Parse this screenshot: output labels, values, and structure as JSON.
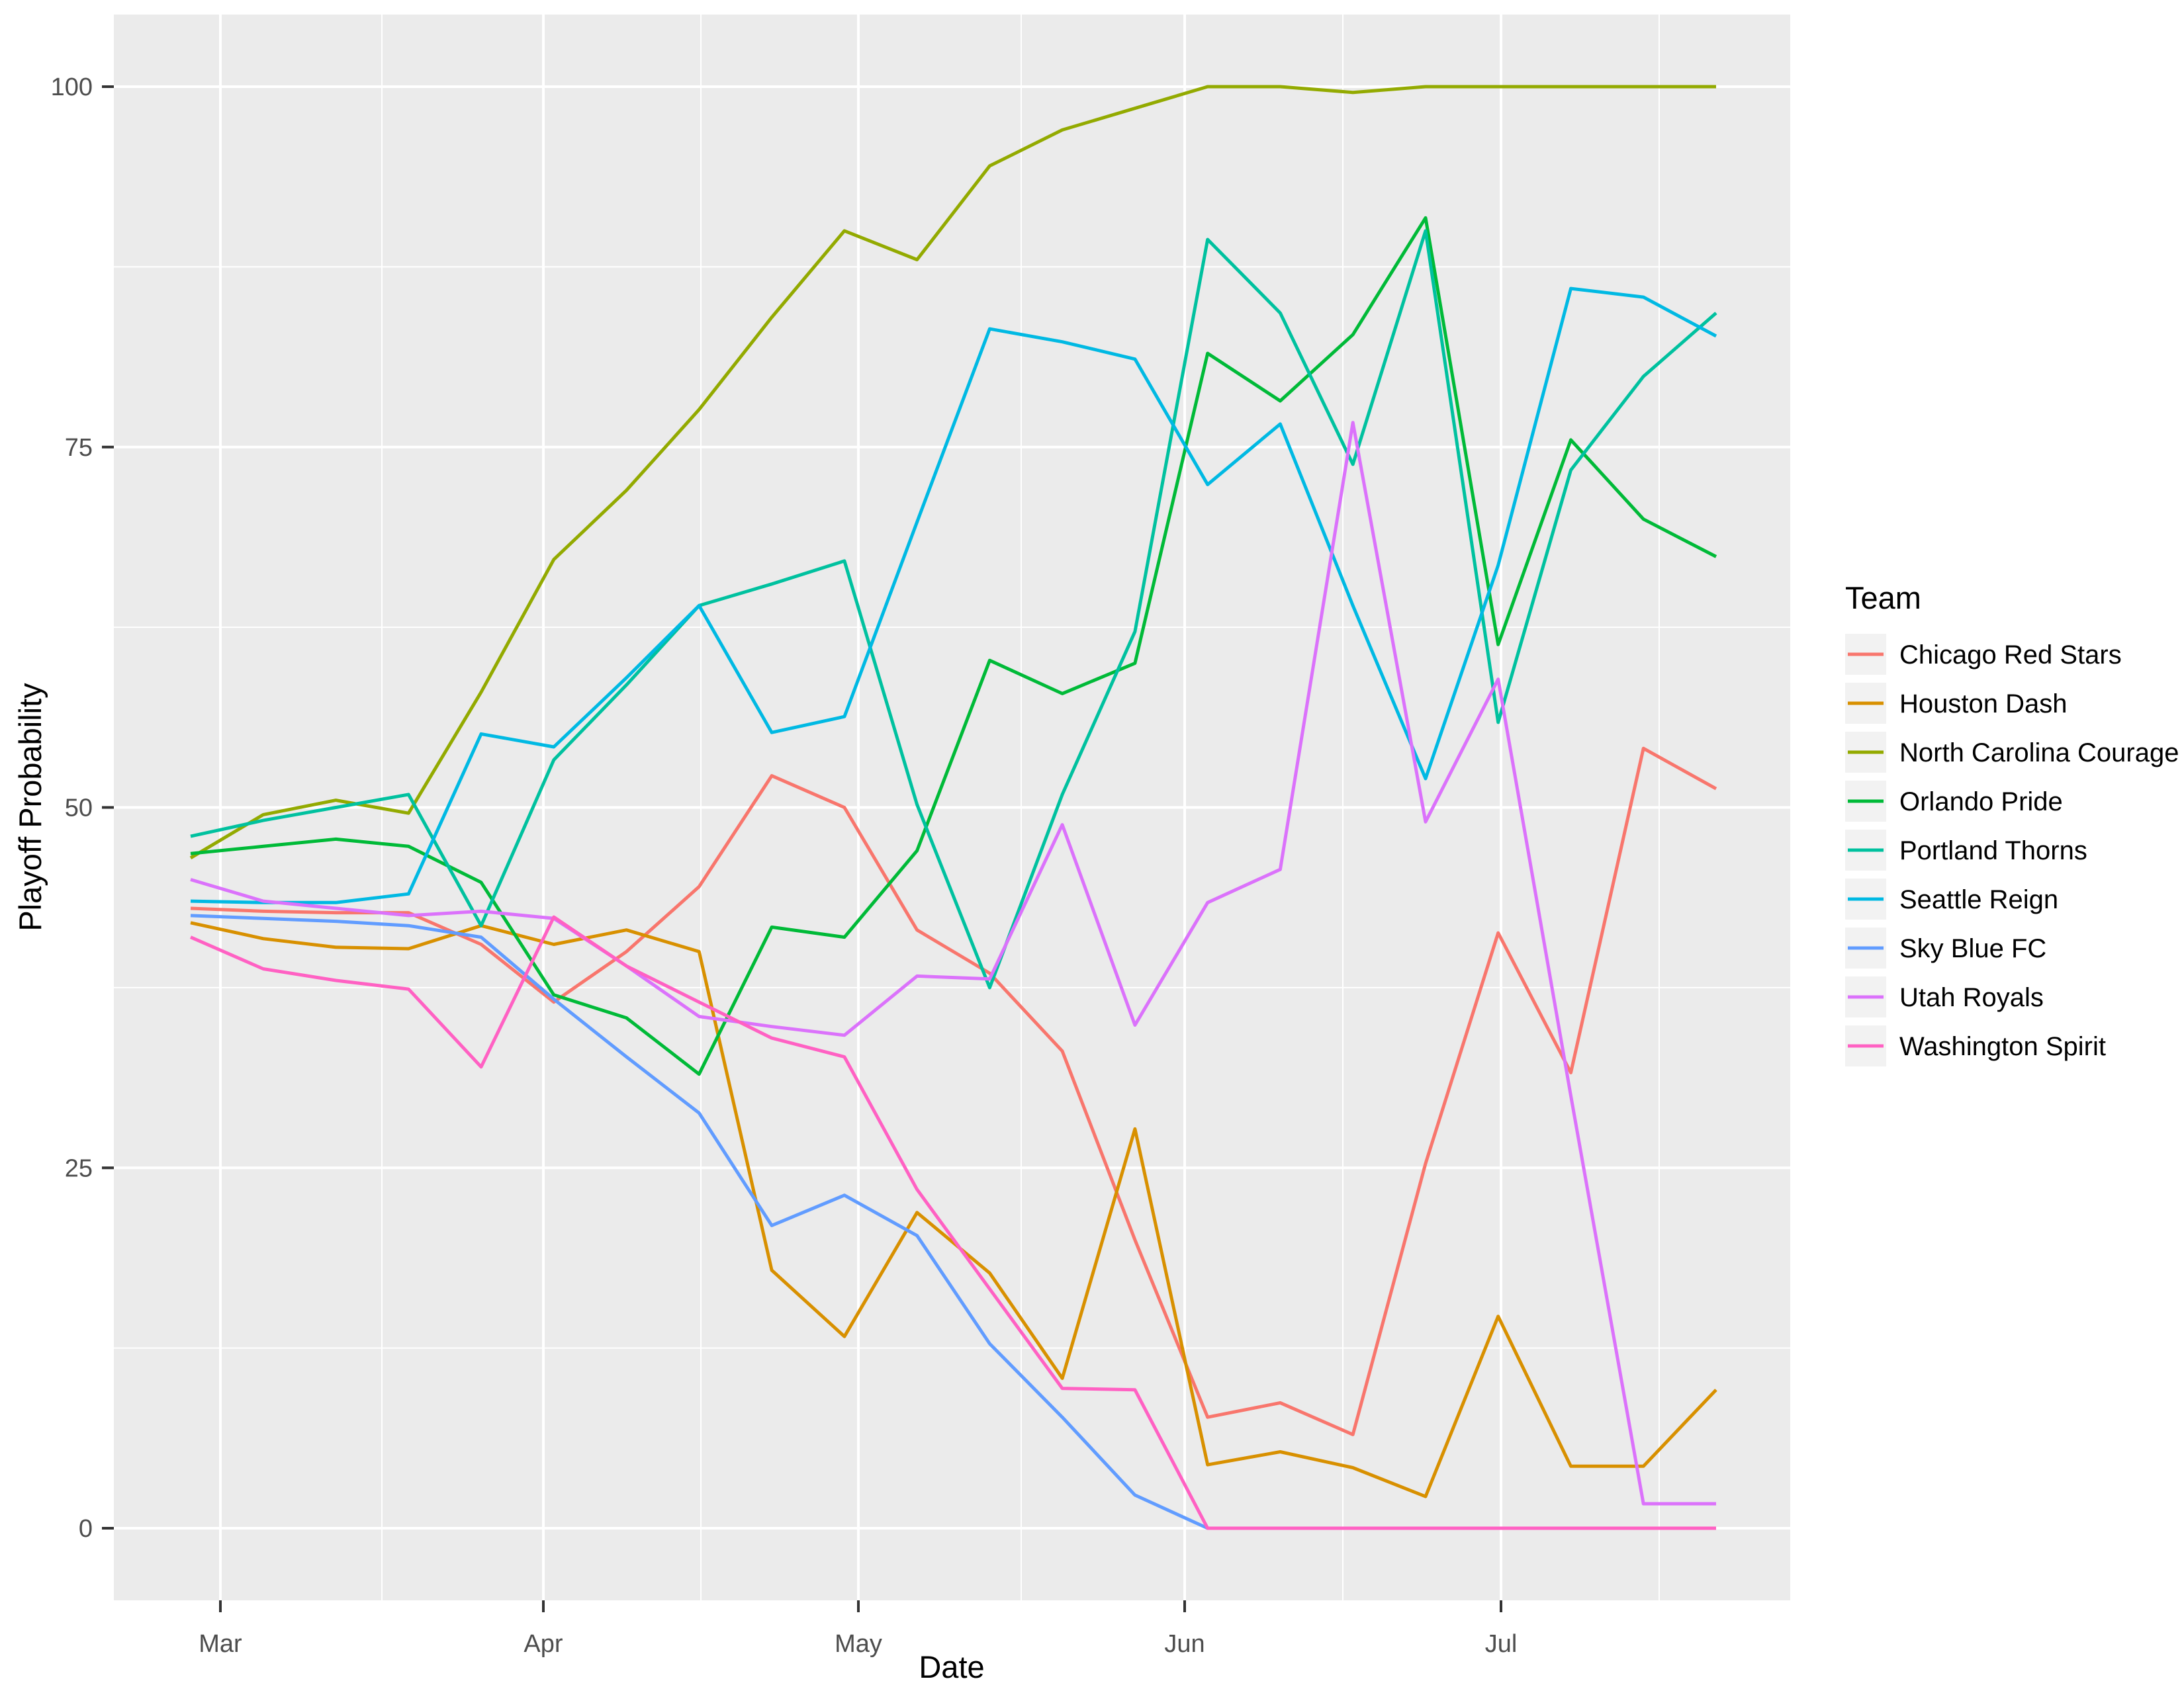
{
  "chart_data": {
    "type": "line",
    "title": "",
    "xlabel": "Date",
    "ylabel": "Playoff Probability",
    "legend_title": "Team",
    "legend_position": "right",
    "grid": "on",
    "panel_background": "#EBEBEB",
    "gridline_color": "#FFFFFF",
    "tick_text_color": "#4D4D4D",
    "ylim": [
      0,
      100
    ],
    "y_tick_labels": [
      "0",
      "25",
      "50",
      "75",
      "100"
    ],
    "y_tick_values": [
      0,
      25,
      50,
      75,
      100
    ],
    "y_minor_values": [
      12.5,
      37.5,
      62.5,
      87.5
    ],
    "x_tick_labels": [
      "Mar",
      "Apr",
      "May",
      "Jun",
      "Jul"
    ],
    "categories": [
      "Feb 26",
      "Mar 5",
      "Mar 12",
      "Mar 19",
      "Mar 26",
      "Apr 2",
      "Apr 9",
      "Apr 16",
      "Apr 23",
      "Apr 30",
      "May 7",
      "May 14",
      "May 21",
      "May 28",
      "Jun 4",
      "Jun 11",
      "Jun 18",
      "Jun 25",
      "Jul 2",
      "Jul 9",
      "Jul 16",
      "Jul 23"
    ],
    "series": [
      {
        "name": "Chicago Red Stars",
        "color": "#F8766D",
        "values": [
          43,
          42.8,
          42.7,
          42.7,
          40.5,
          36.5,
          40,
          44.5,
          52.2,
          50,
          41.5,
          38.5,
          33.1,
          20,
          7.7,
          8.7,
          6.5,
          25.3,
          41.3,
          31.6,
          54.1,
          51.3
        ]
      },
      {
        "name": "Houston Dash",
        "color": "#D89000",
        "values": [
          42,
          40.9,
          40.3,
          40.2,
          41.8,
          40.5,
          41.5,
          40,
          17.9,
          13.3,
          21.9,
          17.7,
          10.4,
          27.7,
          4.4,
          5.3,
          4.2,
          2.2,
          14.7,
          4.3,
          4.3,
          9.6
        ]
      },
      {
        "name": "North Carolina Courage",
        "color": "#93AA00",
        "values": [
          46.5,
          49.5,
          50.5,
          49.6,
          58,
          67.2,
          72,
          77.6,
          84,
          90,
          88,
          94.5,
          97,
          98.5,
          100,
          100,
          99.6,
          100,
          100,
          100,
          100,
          100
        ]
      },
      {
        "name": "Orlando Pride",
        "color": "#00BA38",
        "values": [
          46.8,
          47.3,
          47.8,
          47.3,
          44.8,
          37,
          35.4,
          31.5,
          41.7,
          41,
          47,
          60.2,
          57.9,
          60,
          81.5,
          78.2,
          82.8,
          90.9,
          61.3,
          75.5,
          70,
          67.4
        ]
      },
      {
        "name": "Portland Thorns",
        "color": "#00C19F",
        "values": [
          48,
          49.1,
          50,
          50.9,
          41.8,
          53.3,
          58.5,
          64,
          65.5,
          67.1,
          50.2,
          37.5,
          50.9,
          62.2,
          89.4,
          84.3,
          73.8,
          90,
          55.9,
          73.4,
          79.9,
          84.3
        ]
      },
      {
        "name": "Seattle Reign",
        "color": "#00B9E3",
        "values": [
          43.5,
          43.4,
          43.4,
          44,
          55.1,
          54.2,
          59,
          64,
          55.2,
          56.3,
          69.8,
          83.2,
          82.3,
          81.1,
          72.4,
          76.6,
          64,
          52,
          66.8,
          86,
          85.4,
          82.7
        ]
      },
      {
        "name": "Sky Blue FC",
        "color": "#619CFF",
        "values": [
          42.5,
          42.3,
          42.1,
          41.8,
          41,
          36.7,
          32.7,
          28.8,
          21,
          23.1,
          20.3,
          12.8,
          7.7,
          2.3,
          0,
          0,
          0,
          0,
          0,
          0,
          0,
          0
        ]
      },
      {
        "name": "Utah Royals",
        "color": "#DB72FB",
        "values": [
          45,
          43.5,
          43,
          42.5,
          42.8,
          42.3,
          39,
          35.5,
          34.8,
          34.2,
          38.3,
          38.1,
          48.8,
          34.9,
          43.4,
          45.7,
          76.7,
          49,
          58.9,
          30,
          1.7,
          1.7
        ]
      },
      {
        "name": "Washington Spirit",
        "color": "#FF61C3",
        "values": [
          41,
          38.8,
          38,
          37.4,
          32,
          42.4,
          39,
          36.5,
          34,
          32.7,
          23.5,
          16.6,
          9.7,
          9.6,
          0,
          0,
          0,
          0,
          0,
          0,
          0,
          0
        ]
      }
    ]
  }
}
